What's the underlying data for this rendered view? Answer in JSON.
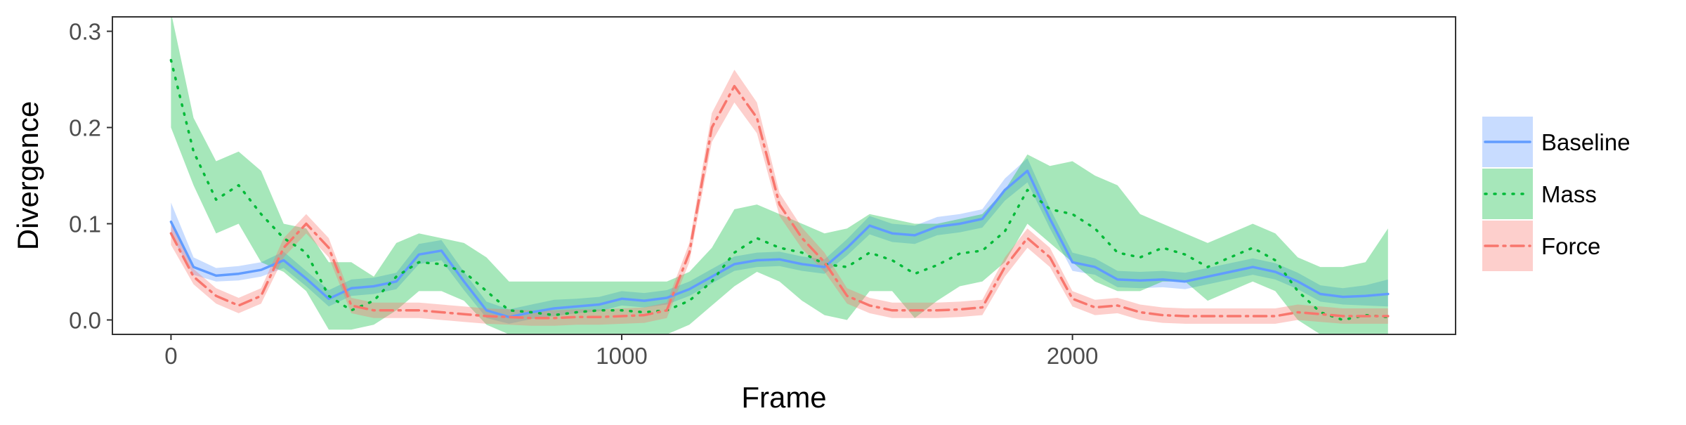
{
  "colors": {
    "baseline": "#619CFF",
    "mass": "#00BA38",
    "force": "#F8766D",
    "axis_text": "#4d4d4d"
  },
  "chart_data": {
    "type": "line",
    "xlabel": "Frame",
    "ylabel": "Divergence",
    "xlim": [
      -130,
      2850
    ],
    "ylim": [
      -0.015,
      0.315
    ],
    "x_ticks": [
      0,
      1000,
      2000
    ],
    "x_tick_labels": [
      "0",
      "1000",
      "2000"
    ],
    "y_ticks": [
      0.0,
      0.1,
      0.2,
      0.3
    ],
    "y_tick_labels": [
      "0.0",
      "0.1",
      "0.2",
      "0.3"
    ],
    "grid": false,
    "legend_position": "right",
    "x": [
      0,
      50,
      100,
      150,
      200,
      250,
      300,
      350,
      400,
      450,
      500,
      550,
      600,
      650,
      700,
      750,
      800,
      850,
      900,
      950,
      1000,
      1050,
      1100,
      1150,
      1200,
      1250,
      1300,
      1350,
      1400,
      1450,
      1500,
      1550,
      1600,
      1650,
      1700,
      1750,
      1800,
      1850,
      1900,
      1950,
      2000,
      2050,
      2100,
      2150,
      2200,
      2250,
      2300,
      2350,
      2400,
      2450,
      2500,
      2550,
      2600,
      2650,
      2700
    ],
    "series": [
      {
        "name": "Baseline",
        "color": "#619CFF",
        "linestyle": "solid",
        "values": [
          0.102,
          0.055,
          0.046,
          0.048,
          0.052,
          0.062,
          0.043,
          0.022,
          0.033,
          0.035,
          0.04,
          0.068,
          0.072,
          0.04,
          0.01,
          0.003,
          0.008,
          0.012,
          0.014,
          0.016,
          0.022,
          0.02,
          0.023,
          0.032,
          0.045,
          0.058,
          0.062,
          0.063,
          0.058,
          0.055,
          0.075,
          0.098,
          0.09,
          0.088,
          0.097,
          0.1,
          0.105,
          0.135,
          0.155,
          0.105,
          0.06,
          0.055,
          0.042,
          0.041,
          0.042,
          0.04,
          0.045,
          0.05,
          0.055,
          0.05,
          0.04,
          0.027,
          0.024,
          0.025,
          0.027
        ],
        "lower": [
          0.088,
          0.047,
          0.04,
          0.041,
          0.045,
          0.054,
          0.035,
          0.014,
          0.025,
          0.027,
          0.032,
          0.058,
          0.062,
          0.031,
          0.002,
          -0.004,
          0.001,
          0.004,
          0.007,
          0.009,
          0.015,
          0.013,
          0.016,
          0.025,
          0.038,
          0.051,
          0.055,
          0.056,
          0.051,
          0.048,
          0.067,
          0.089,
          0.081,
          0.079,
          0.088,
          0.091,
          0.096,
          0.124,
          0.143,
          0.095,
          0.051,
          0.047,
          0.034,
          0.033,
          0.034,
          0.032,
          0.037,
          0.042,
          0.047,
          0.042,
          0.032,
          0.019,
          0.016,
          0.015,
          0.014
        ],
        "upper": [
          0.122,
          0.065,
          0.054,
          0.056,
          0.06,
          0.071,
          0.051,
          0.031,
          0.042,
          0.044,
          0.049,
          0.079,
          0.083,
          0.05,
          0.019,
          0.011,
          0.016,
          0.021,
          0.022,
          0.024,
          0.03,
          0.028,
          0.031,
          0.04,
          0.053,
          0.066,
          0.07,
          0.071,
          0.066,
          0.063,
          0.084,
          0.108,
          0.1,
          0.098,
          0.107,
          0.11,
          0.115,
          0.147,
          0.168,
          0.116,
          0.07,
          0.064,
          0.051,
          0.05,
          0.051,
          0.049,
          0.054,
          0.059,
          0.064,
          0.059,
          0.049,
          0.036,
          0.033,
          0.036,
          0.042
        ]
      },
      {
        "name": "Mass",
        "color": "#00BA38",
        "linestyle": "dotted",
        "values": [
          0.27,
          0.175,
          0.125,
          0.14,
          0.11,
          0.085,
          0.07,
          0.025,
          0.01,
          0.02,
          0.045,
          0.06,
          0.058,
          0.05,
          0.03,
          0.01,
          0.008,
          0.005,
          0.008,
          0.01,
          0.01,
          0.008,
          0.01,
          0.02,
          0.04,
          0.07,
          0.085,
          0.075,
          0.07,
          0.058,
          0.055,
          0.07,
          0.062,
          0.048,
          0.057,
          0.069,
          0.072,
          0.092,
          0.135,
          0.115,
          0.11,
          0.095,
          0.07,
          0.065,
          0.075,
          0.068,
          0.055,
          0.065,
          0.075,
          0.062,
          0.03,
          0.008,
          0.0,
          0.005,
          0.003
        ],
        "lower": [
          0.2,
          0.14,
          0.09,
          0.1,
          0.06,
          0.05,
          0.03,
          -0.01,
          -0.01,
          -0.005,
          0.01,
          0.03,
          0.03,
          0.02,
          -0.005,
          -0.015,
          -0.015,
          -0.015,
          -0.015,
          -0.015,
          -0.015,
          -0.015,
          -0.015,
          -0.005,
          0.015,
          0.035,
          0.05,
          0.04,
          0.02,
          0.005,
          0.0,
          0.03,
          0.03,
          0.002,
          0.02,
          0.035,
          0.04,
          0.06,
          0.1,
          0.08,
          0.06,
          0.04,
          0.03,
          0.03,
          0.04,
          0.04,
          0.02,
          0.03,
          0.04,
          0.03,
          0.0,
          -0.015,
          -0.015,
          -0.015,
          -0.015
        ],
        "upper": [
          0.32,
          0.21,
          0.165,
          0.175,
          0.155,
          0.1,
          0.095,
          0.06,
          0.06,
          0.045,
          0.08,
          0.09,
          0.085,
          0.08,
          0.065,
          0.04,
          0.04,
          0.04,
          0.04,
          0.04,
          0.04,
          0.04,
          0.04,
          0.05,
          0.075,
          0.115,
          0.12,
          0.11,
          0.1,
          0.09,
          0.095,
          0.11,
          0.105,
          0.1,
          0.1,
          0.105,
          0.11,
          0.135,
          0.172,
          0.16,
          0.165,
          0.15,
          0.14,
          0.11,
          0.1,
          0.09,
          0.08,
          0.09,
          0.1,
          0.09,
          0.065,
          0.055,
          0.055,
          0.06,
          0.095
        ]
      },
      {
        "name": "Force",
        "color": "#F8766D",
        "linestyle": "dashdot",
        "values": [
          0.09,
          0.045,
          0.025,
          0.015,
          0.025,
          0.075,
          0.1,
          0.075,
          0.015,
          0.01,
          0.01,
          0.01,
          0.008,
          0.006,
          0.004,
          0.003,
          0.002,
          0.002,
          0.003,
          0.003,
          0.004,
          0.005,
          0.01,
          0.07,
          0.2,
          0.243,
          0.21,
          0.12,
          0.085,
          0.06,
          0.025,
          0.015,
          0.01,
          0.01,
          0.01,
          0.011,
          0.013,
          0.055,
          0.085,
          0.065,
          0.022,
          0.013,
          0.015,
          0.008,
          0.005,
          0.004,
          0.004,
          0.004,
          0.004,
          0.004,
          0.008,
          0.006,
          0.004,
          0.004,
          0.004
        ],
        "lower": [
          0.078,
          0.037,
          0.017,
          0.007,
          0.017,
          0.065,
          0.09,
          0.065,
          0.007,
          0.002,
          0.002,
          0.002,
          0.0,
          -0.002,
          -0.004,
          -0.005,
          -0.006,
          -0.006,
          -0.005,
          -0.005,
          -0.004,
          -0.003,
          0.002,
          0.06,
          0.185,
          0.226,
          0.194,
          0.108,
          0.074,
          0.05,
          0.017,
          0.007,
          0.002,
          0.002,
          0.002,
          0.003,
          0.005,
          0.045,
          0.075,
          0.055,
          0.014,
          0.005,
          0.007,
          0.0,
          -0.003,
          -0.004,
          -0.004,
          -0.004,
          -0.004,
          -0.004,
          0.0,
          -0.002,
          -0.004,
          -0.004,
          -0.004
        ],
        "upper": [
          0.102,
          0.053,
          0.033,
          0.023,
          0.033,
          0.085,
          0.11,
          0.085,
          0.023,
          0.018,
          0.018,
          0.018,
          0.016,
          0.014,
          0.012,
          0.011,
          0.01,
          0.01,
          0.011,
          0.011,
          0.012,
          0.013,
          0.018,
          0.08,
          0.215,
          0.26,
          0.226,
          0.132,
          0.096,
          0.07,
          0.033,
          0.023,
          0.018,
          0.018,
          0.018,
          0.019,
          0.021,
          0.065,
          0.095,
          0.075,
          0.03,
          0.021,
          0.023,
          0.016,
          0.013,
          0.012,
          0.012,
          0.012,
          0.012,
          0.012,
          0.016,
          0.014,
          0.012,
          0.012,
          0.012
        ]
      }
    ]
  }
}
